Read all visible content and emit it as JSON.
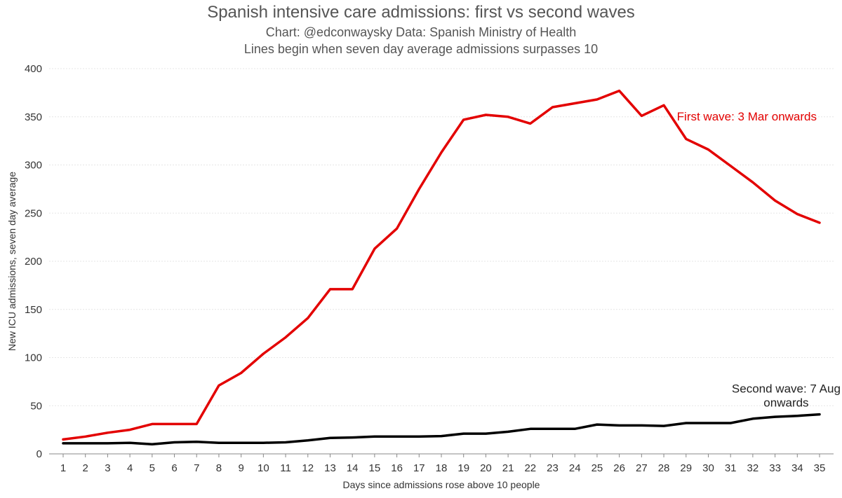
{
  "chart_data": {
    "type": "line",
    "title": "Spanish intensive care admissions: first vs second waves",
    "subtitle": "Chart: @edconwaysky Data: Spanish Ministry of Health",
    "note": "Lines begin when seven day average admissions surpasses 10",
    "xlabel": "Days since admissions rose above 10 people",
    "ylabel": "New ICU admissions, seven day average",
    "x": [
      1,
      2,
      3,
      4,
      5,
      6,
      7,
      8,
      9,
      10,
      11,
      12,
      13,
      14,
      15,
      16,
      17,
      18,
      19,
      20,
      21,
      22,
      23,
      24,
      25,
      26,
      27,
      28,
      29,
      30,
      31,
      32,
      33,
      34,
      35
    ],
    "ylim": [
      0,
      400
    ],
    "yticks": [
      0,
      50,
      100,
      150,
      200,
      250,
      300,
      350,
      400
    ],
    "grid": "horizontal",
    "series": [
      {
        "id": "first",
        "color": "#e30000",
        "values": [
          15,
          18,
          22,
          25,
          31,
          31,
          31,
          71,
          84,
          104,
          121,
          141,
          171,
          171,
          213,
          234,
          275,
          313,
          347,
          352,
          350,
          343,
          360,
          364,
          368,
          377,
          351,
          362,
          327,
          316,
          299,
          282,
          263,
          249,
          240
        ],
        "annotation": [
          "First wave: 3 Mar onwards"
        ]
      },
      {
        "id": "second",
        "color": "#000000",
        "values": [
          11,
          11,
          11,
          11.5,
          10,
          12,
          12.5,
          11.5,
          11.5,
          11.5,
          12,
          14,
          16.5,
          17,
          18,
          18,
          18,
          18.5,
          21,
          21,
          23,
          26,
          26,
          26,
          30.5,
          29.5,
          29.5,
          29,
          32,
          32,
          32,
          36.5,
          38.5,
          39.5,
          41
        ],
        "annotation": [
          "Second wave: 7 Aug",
          "onwards"
        ]
      }
    ]
  }
}
